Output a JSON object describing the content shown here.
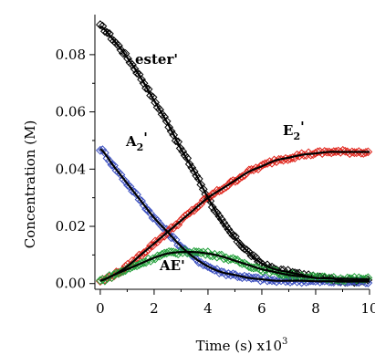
{
  "chart_data": {
    "type": "scatter",
    "xlabel": "Time (s) x10",
    "xlabel_exponent": "3",
    "ylabel": "Concentration (M)",
    "xlim": [
      -0.2,
      10
    ],
    "ylim": [
      -0.002,
      0.094
    ],
    "x_ticks": [
      0,
      2,
      4,
      6,
      8,
      10
    ],
    "x_tick_labels": [
      "0",
      "2",
      "4",
      "6",
      "8",
      "10"
    ],
    "y_ticks": [
      0.0,
      0.02,
      0.04,
      0.06,
      0.08
    ],
    "y_tick_labels": [
      "0.00",
      "0.02",
      "0.04",
      "0.06",
      "0.08"
    ],
    "grid": false,
    "fit_line_color": "#000000",
    "series": [
      {
        "name": "ester'",
        "color": "#000000",
        "marker": "diamond",
        "label": {
          "text": "ester",
          "prime": "'",
          "sub": ""
        },
        "x": [
          0.0,
          0.5,
          1.0,
          1.5,
          2.0,
          2.5,
          3.0,
          3.5,
          4.0,
          4.5,
          5.0,
          5.5,
          6.0,
          6.5,
          7.0,
          7.5,
          8.0,
          8.5,
          9.0,
          9.5,
          10.0
        ],
        "values": [
          0.09,
          0.085,
          0.079,
          0.072,
          0.064,
          0.056,
          0.047,
          0.039,
          0.03,
          0.022,
          0.016,
          0.011,
          0.007,
          0.005,
          0.004,
          0.003,
          0.002,
          0.002,
          0.001,
          0.001,
          0.001
        ]
      },
      {
        "name": "A2'",
        "color": "#3b4fc0",
        "marker": "diamond",
        "label": {
          "text": "A",
          "sub": "2",
          "prime": "'"
        },
        "x": [
          0.0,
          0.5,
          1.0,
          1.5,
          2.0,
          2.5,
          3.0,
          3.5,
          4.0,
          4.5,
          5.0,
          5.5,
          6.0,
          6.5,
          7.0,
          7.5,
          8.0,
          8.5,
          9.0,
          9.5,
          10.0
        ],
        "values": [
          0.047,
          0.041,
          0.035,
          0.029,
          0.023,
          0.018,
          0.013,
          0.009,
          0.006,
          0.004,
          0.003,
          0.002,
          0.0015,
          0.001,
          0.001,
          0.001,
          0.0008,
          0.0008,
          0.0007,
          0.0007,
          0.0007
        ]
      },
      {
        "name": "E2'",
        "color": "#e0261d",
        "marker": "diamond",
        "label": {
          "text": "E",
          "sub": "2",
          "prime": "'"
        },
        "x": [
          0.0,
          0.5,
          1.0,
          1.5,
          2.0,
          2.5,
          3.0,
          3.5,
          4.0,
          4.5,
          5.0,
          5.5,
          6.0,
          6.5,
          7.0,
          7.5,
          8.0,
          8.5,
          9.0,
          9.5,
          10.0
        ],
        "values": [
          0.001,
          0.003,
          0.006,
          0.01,
          0.014,
          0.018,
          0.022,
          0.026,
          0.03,
          0.033,
          0.036,
          0.039,
          0.041,
          0.043,
          0.044,
          0.045,
          0.0455,
          0.046,
          0.046,
          0.046,
          0.046
        ]
      },
      {
        "name": "AE'",
        "color": "#22a03a",
        "marker": "diamond",
        "label": {
          "text": "AE",
          "sub": "",
          "prime": "'"
        },
        "x": [
          0.0,
          0.5,
          1.0,
          1.5,
          2.0,
          2.5,
          3.0,
          3.5,
          4.0,
          4.5,
          5.0,
          5.5,
          6.0,
          6.5,
          7.0,
          7.5,
          8.0,
          8.5,
          9.0,
          9.5,
          10.0
        ],
        "values": [
          0.001,
          0.003,
          0.005,
          0.007,
          0.009,
          0.0105,
          0.011,
          0.011,
          0.0105,
          0.0095,
          0.008,
          0.0065,
          0.005,
          0.004,
          0.003,
          0.0025,
          0.002,
          0.0018,
          0.0017,
          0.0016,
          0.0015
        ]
      }
    ]
  }
}
